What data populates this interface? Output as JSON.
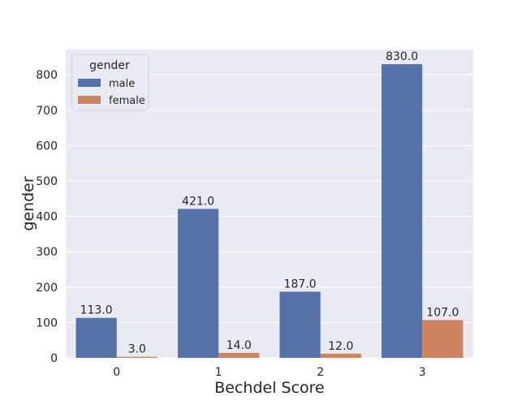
{
  "chart_data": {
    "type": "bar",
    "xlabel": "Bechdel Score",
    "ylabel": "gender",
    "categories": [
      "0",
      "1",
      "2",
      "3"
    ],
    "series": [
      {
        "name": "male",
        "values": [
          113,
          421,
          187,
          830
        ],
        "color": "#5471A8"
      },
      {
        "name": "female",
        "values": [
          3,
          14,
          12,
          107
        ],
        "color": "#CC8460"
      }
    ],
    "data_labels": {
      "male": [
        "113.0",
        "421.0",
        "187.0",
        "830.0"
      ],
      "female": [
        "3.0",
        "14.0",
        "12.0",
        "107.0"
      ]
    },
    "ylim": [
      0,
      871.5
    ],
    "yticks": [
      0,
      100,
      200,
      300,
      400,
      500,
      600,
      700,
      800
    ],
    "grid": true,
    "legend": {
      "title": "gender",
      "placement": "top-left"
    },
    "background_color": "#EAEAF2",
    "grid_color": "#FFFFFF"
  }
}
